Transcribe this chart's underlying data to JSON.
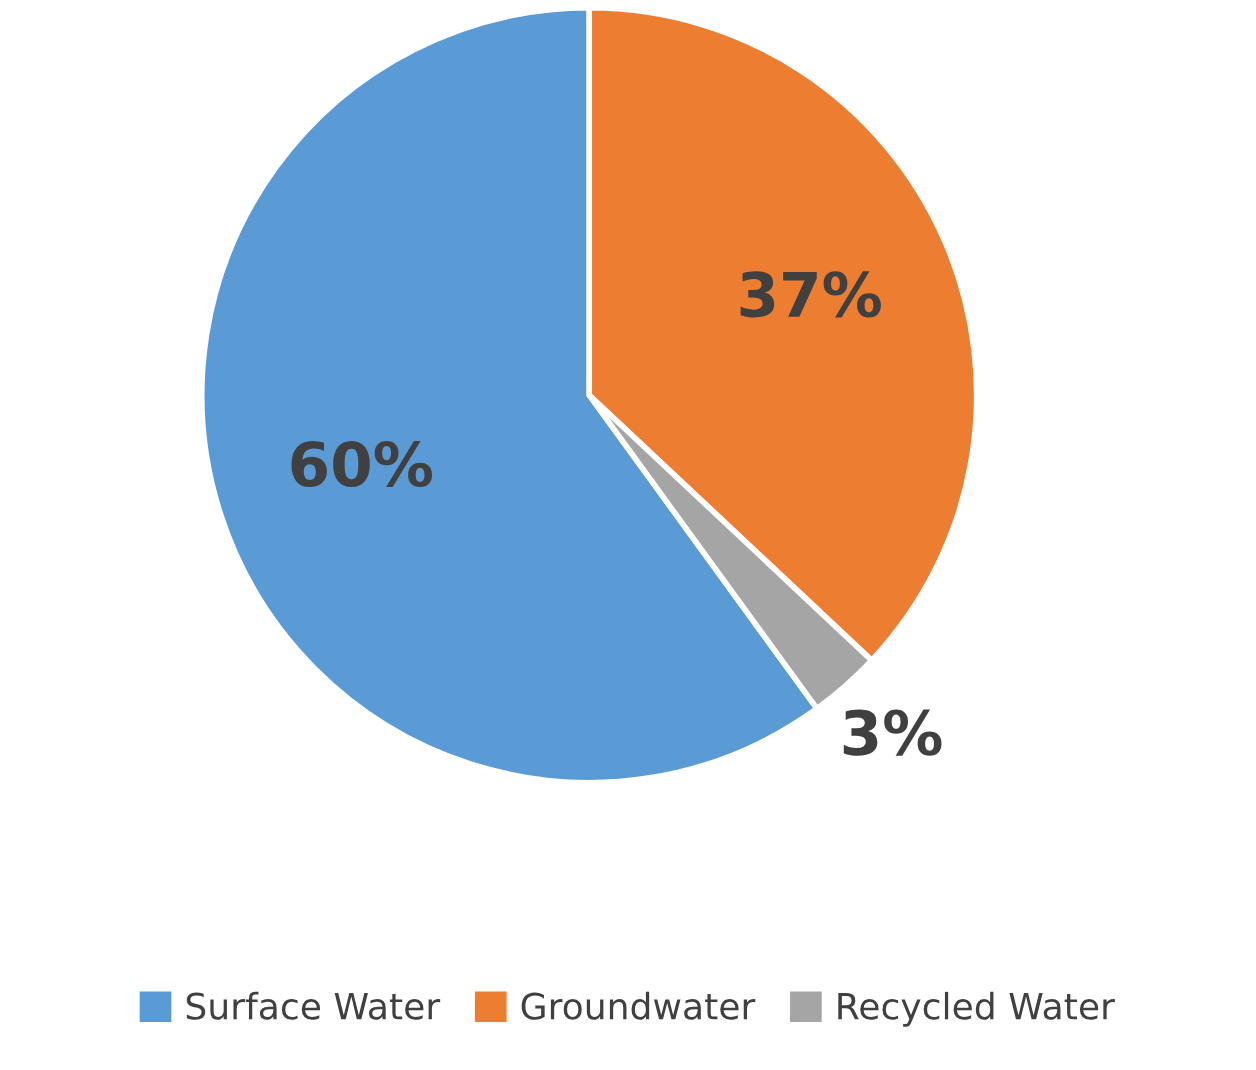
{
  "chart_data": {
    "type": "pie",
    "categories": [
      "Surface Water",
      "Groundwater",
      "Recycled Water"
    ],
    "values": [
      60,
      37,
      3
    ],
    "colors": [
      "#5b9bd5",
      "#ed7d31",
      "#a5a5a5"
    ],
    "value_labels": [
      "60%",
      "37%",
      "3%"
    ],
    "legend": "bottom"
  }
}
